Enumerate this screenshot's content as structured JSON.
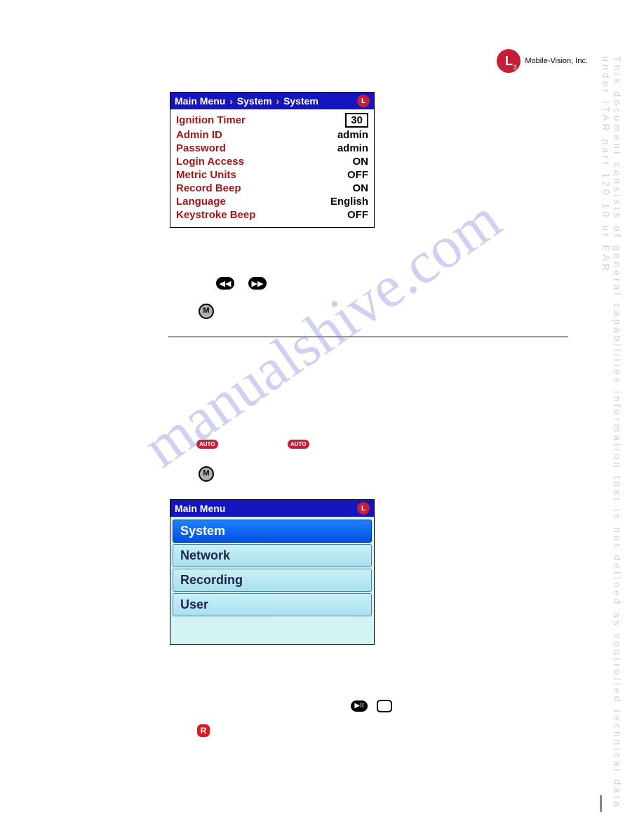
{
  "company": {
    "logo_text": "L",
    "logo_sub": "3",
    "name": "Mobile-Vision, Inc."
  },
  "vertical_watermark": "This document consists of general capabilities information that is not defined as controlled technical data under  ITAR part 120.10 or EAR",
  "diagonal_watermark": "manualshive.com",
  "system_panel": {
    "breadcrumb": [
      "Main Menu",
      "System",
      "System"
    ],
    "rows": [
      {
        "label": "Ignition Timer",
        "value": "30",
        "boxed": true
      },
      {
        "label": "Admin ID",
        "value": "admin"
      },
      {
        "label": "Password",
        "value": "admin"
      },
      {
        "label": "Login Access",
        "value": "ON"
      },
      {
        "label": "Metric Units",
        "value": "OFF"
      },
      {
        "label": "Record Beep",
        "value": "ON"
      },
      {
        "label": "Language",
        "value": "English"
      },
      {
        "label": "Keystroke Beep",
        "value": "OFF"
      }
    ]
  },
  "main_menu_panel": {
    "title": "Main Menu",
    "items": [
      "System",
      "Network",
      "Recording",
      "User"
    ],
    "selected_index": 0
  },
  "buttons": {
    "rewind": "◀◀",
    "forward": "▶▶",
    "m": "M",
    "auto": "AUTO",
    "playpause": "▶II",
    "stop": "■",
    "r": "R"
  }
}
